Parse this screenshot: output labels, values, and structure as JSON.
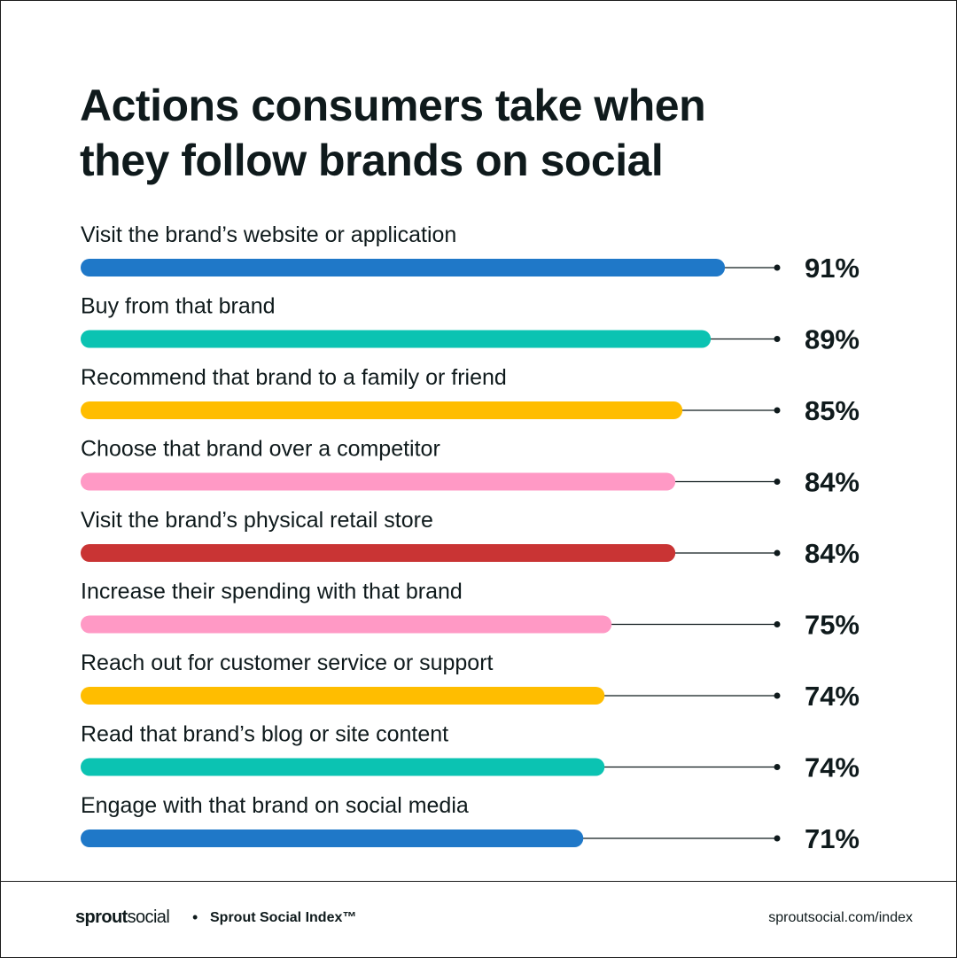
{
  "chart_data": {
    "type": "bar",
    "orientation": "horizontal",
    "title": "Actions consumers take when they follow brands on social",
    "title_lines": [
      "Actions consumers take when",
      "they follow brands on social"
    ],
    "unit": "%",
    "categories": [
      "Visit the brand’s website or application",
      "Buy from that brand",
      "Recommend that brand to a family or friend",
      "Choose that brand over a competitor",
      "Visit the brand’s physical retail store",
      "Increase their spending with that brand",
      "Reach out for customer service or support",
      "Read that brand’s blog or site content",
      "Engage with that brand on social media"
    ],
    "values": [
      91,
      89,
      85,
      84,
      84,
      75,
      74,
      74,
      71
    ],
    "value_labels": [
      "91%",
      "89%",
      "85%",
      "84%",
      "84%",
      "75%",
      "74%",
      "74%",
      "71%"
    ],
    "colors": [
      "#1f78c8",
      "#0bc3b2",
      "#ffbd00",
      "#ff99c5",
      "#c93434",
      "#ff99c5",
      "#ffbd00",
      "#0bc3b2",
      "#1f78c8"
    ],
    "xlim": [
      0,
      100
    ],
    "grid": false,
    "legend": "none"
  },
  "footer": {
    "brand_bold": "sprout",
    "brand_light": "social",
    "separator": "•",
    "index_label": "Sprout Social Index™",
    "url": "sproutsocial.com/index"
  },
  "colors": {
    "text": "#0f1a1c",
    "leader_line": "#0f1a1c"
  }
}
